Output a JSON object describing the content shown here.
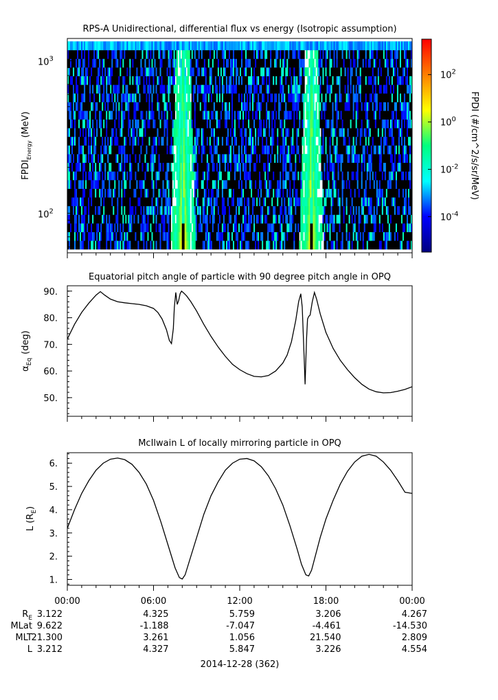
{
  "chart_data": [
    {
      "type": "heatmap",
      "title": "RPS-A Unidirectional, differential flux vs energy (Isotropic assumption)",
      "ylabel_main": "FPDI",
      "ylabel_sub": "Energy",
      "ylabel_unit": "(MeV)",
      "yscale": "log",
      "ylim": [
        55,
        1400
      ],
      "yticks": [
        {
          "value": 100,
          "base": "10",
          "exp": "2"
        },
        {
          "value": 1000,
          "base": "10",
          "exp": "3"
        }
      ],
      "colorbar": {
        "label": "FPDI (#/cm^2/s/sr/MeV)",
        "scale": "log",
        "range_exp": [
          -5.5,
          3.5
        ],
        "ticks": [
          {
            "exp": -4,
            "base": "10",
            "label": "-4"
          },
          {
            "exp": -2,
            "base": "10",
            "label": "-2"
          },
          {
            "exp": 0,
            "base": "10",
            "label": "0"
          },
          {
            "exp": 2,
            "base": "10",
            "label": "2"
          }
        ],
        "colors": [
          "#00007f",
          "#0000ff",
          "#00ffff",
          "#00ff7f",
          "#ffff00",
          "#ff7f00",
          "#ff0000"
        ]
      },
      "background_color": "#000000",
      "bright_band_hours": [
        [
          7.5,
          8.6
        ],
        [
          16.5,
          17.5
        ]
      ]
    },
    {
      "type": "line",
      "title": "Equatorial pitch angle of particle with 90 degree pitch angle in OPQ",
      "ylabel_main": "α",
      "ylabel_sub": "Eq",
      "ylabel_unit": "(deg)",
      "ylim": [
        43,
        92
      ],
      "yticks": [
        50,
        60,
        70,
        80,
        90
      ],
      "series": [
        {
          "x": [
            0,
            0.5,
            1,
            1.5,
            2,
            2.3,
            2.6,
            3,
            3.5,
            4,
            4.5,
            5,
            5.5,
            6,
            6.3,
            6.6,
            6.9,
            7.1,
            7.25,
            7.38,
            7.45,
            7.55,
            7.65,
            7.75,
            7.85,
            7.95,
            8.1,
            8.3,
            8.6,
            9,
            9.5,
            10,
            10.5,
            11,
            11.5,
            12,
            12.5,
            13,
            13.5,
            14,
            14.5,
            15,
            15.3,
            15.6,
            15.9,
            16.1,
            16.25,
            16.35,
            16.45,
            16.55,
            16.65,
            16.72,
            16.8,
            16.9,
            17.05,
            17.2,
            17.35,
            17.6,
            18,
            18.5,
            19,
            19.5,
            20,
            20.5,
            21,
            21.5,
            22,
            22.5,
            23,
            23.5,
            24
          ],
          "y": [
            72,
            77.5,
            82,
            85.5,
            88.5,
            89.8,
            88.5,
            87,
            86,
            85.6,
            85.3,
            85,
            84.5,
            83.5,
            82,
            79.5,
            75.5,
            71.5,
            70.3,
            76,
            84,
            89.5,
            85,
            86.5,
            89,
            90,
            89.3,
            88.2,
            86,
            82.5,
            77.5,
            73,
            69,
            65.5,
            62.5,
            60.5,
            59,
            58,
            57.8,
            58.3,
            60,
            63,
            66,
            71,
            79,
            86,
            89,
            84,
            70,
            55,
            72,
            79.5,
            80.5,
            81,
            86,
            89.5,
            87,
            81.5,
            74.5,
            68.5,
            64,
            60.5,
            57.5,
            55,
            53.2,
            52.2,
            51.8,
            51.9,
            52.4,
            53.1,
            54.1
          ]
        }
      ]
    },
    {
      "type": "line",
      "title": "McIlwain L of locally mirroring particle in OPQ",
      "ylabel_main": "L (R",
      "ylabel_sub": "E",
      "ylabel_unit": ")",
      "ylim": [
        0.75,
        6.45
      ],
      "yticks": [
        1,
        2,
        3,
        4,
        5,
        6
      ],
      "series": [
        {
          "x": [
            0,
            0.5,
            1,
            1.5,
            2,
            2.5,
            3,
            3.5,
            4,
            4.5,
            5,
            5.5,
            6,
            6.5,
            7,
            7.5,
            7.8,
            8,
            8.2,
            8.5,
            9,
            9.5,
            10,
            10.5,
            11,
            11.5,
            12,
            12.5,
            13,
            13.5,
            14,
            14.5,
            15,
            15.5,
            16,
            16.3,
            16.6,
            16.8,
            17,
            17.3,
            17.6,
            18,
            18.5,
            19,
            19.5,
            20,
            20.5,
            21,
            21.5,
            22,
            22.5,
            23,
            23.5,
            24
          ],
          "y": [
            3.2,
            4.0,
            4.7,
            5.25,
            5.7,
            6.0,
            6.17,
            6.22,
            6.15,
            5.95,
            5.6,
            5.1,
            4.4,
            3.5,
            2.5,
            1.5,
            1.08,
            1.02,
            1.2,
            1.8,
            2.8,
            3.8,
            4.6,
            5.2,
            5.7,
            6.0,
            6.17,
            6.2,
            6.1,
            5.85,
            5.45,
            4.9,
            4.2,
            3.3,
            2.3,
            1.65,
            1.2,
            1.15,
            1.4,
            2.1,
            2.8,
            3.6,
            4.4,
            5.1,
            5.65,
            6.05,
            6.3,
            6.38,
            6.3,
            6.05,
            5.7,
            5.25,
            4.75,
            4.7
          ]
        }
      ]
    }
  ],
  "xaxis": {
    "tick_labels": [
      "00:00",
      "06:00",
      "12:00",
      "18:00",
      "00:00"
    ],
    "date_label": "2014-12-28 (362)"
  },
  "ephemeris": {
    "rows": [
      {
        "label_main": "R",
        "label_sub": "E",
        "values": [
          "3.122",
          "4.325",
          "5.759",
          "3.206",
          "4.267"
        ]
      },
      {
        "label_main": "MLat",
        "label_sub": "",
        "values": [
          "9.622",
          "-1.188",
          "-7.047",
          "-4.461",
          "-14.530"
        ]
      },
      {
        "label_main": "MLT",
        "label_sub": "",
        "values": [
          "21.300",
          "3.261",
          "1.056",
          "21.540",
          "2.809"
        ]
      },
      {
        "label_main": "L",
        "label_sub": "",
        "values": [
          "3.212",
          "4.327",
          "5.847",
          "3.226",
          "4.554"
        ]
      }
    ]
  }
}
